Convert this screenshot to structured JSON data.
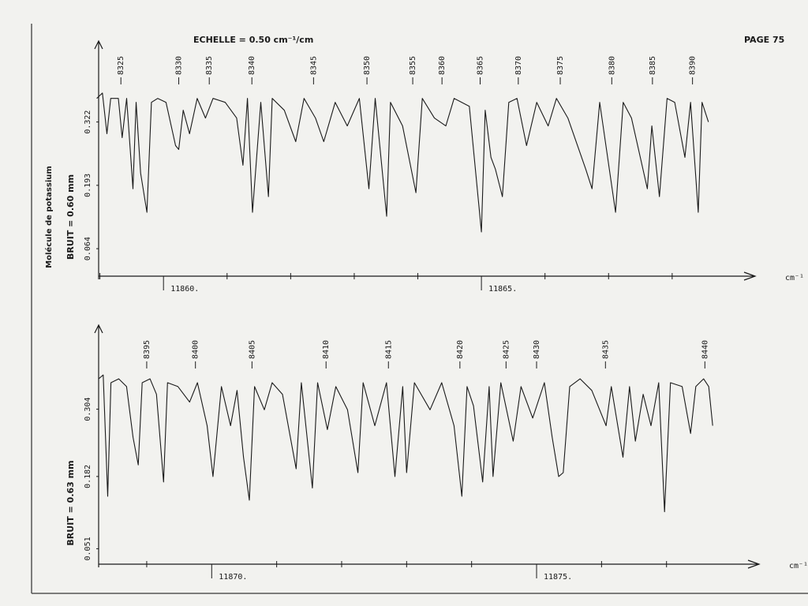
{
  "header": {
    "scale": "ECHELLE = 0.50 cm⁻¹/cm",
    "page": "PAGE 75"
  },
  "chart_data": [
    {
      "type": "line",
      "ylabel": "BRUIT = 0.60 mm",
      "molecule": "Molécule de potassium",
      "xlabel": "cm⁻¹",
      "xlim": [
        11858.98,
        11869.28
      ],
      "ylim": [
        0.008,
        0.474
      ],
      "xticks": [
        {
          "value": 11860,
          "label": "11860."
        },
        {
          "value": 11865,
          "label": "11865."
        }
      ],
      "minor_xticks": [
        11859,
        11861,
        11862,
        11863,
        11864,
        11866,
        11867,
        11868
      ],
      "yticks": [
        0.064,
        0.193,
        0.322
      ],
      "line_labels": [
        {
          "x": 11859.33,
          "label": "8325"
        },
        {
          "x": 11860.24,
          "label": "8330"
        },
        {
          "x": 11860.72,
          "label": "8335"
        },
        {
          "x": 11861.39,
          "label": "8340"
        },
        {
          "x": 11862.36,
          "label": "8345"
        },
        {
          "x": 11863.2,
          "label": "8350"
        },
        {
          "x": 11863.92,
          "label": "8355"
        },
        {
          "x": 11864.38,
          "label": "8360"
        },
        {
          "x": 11864.98,
          "label": "8365"
        },
        {
          "x": 11865.58,
          "label": "8370"
        },
        {
          "x": 11866.24,
          "label": "8375"
        },
        {
          "x": 11867.05,
          "label": "8380"
        },
        {
          "x": 11867.69,
          "label": "8385"
        },
        {
          "x": 11868.32,
          "label": "8390"
        }
      ],
      "series": [
        {
          "color": "#1a1a1a",
          "x": [
            11858.95,
            11859.04,
            11859.11,
            11859.17,
            11859.29,
            11859.35,
            11859.42,
            11859.52,
            11859.57,
            11859.64,
            11859.74,
            11859.81,
            11859.91,
            11860.04,
            11860.19,
            11860.24,
            11860.31,
            11860.41,
            11860.53,
            11860.66,
            11860.78,
            11860.97,
            11861.15,
            11861.25,
            11861.32,
            11861.4,
            11861.53,
            11861.65,
            11861.71,
            11861.9,
            11862.08,
            11862.21,
            11862.39,
            11862.52,
            11862.7,
            11862.89,
            11863.08,
            11863.23,
            11863.33,
            11863.51,
            11863.57,
            11863.76,
            11863.97,
            11864.07,
            11864.26,
            11864.44,
            11864.57,
            11864.81,
            11865.0,
            11865.06,
            11865.15,
            11865.22,
            11865.33,
            11865.43,
            11865.56,
            11865.71,
            11865.87,
            11866.05,
            11866.18,
            11866.36,
            11866.64,
            11866.74,
            11866.86,
            11867.11,
            11867.23,
            11867.36,
            11867.61,
            11867.68,
            11867.8,
            11867.92,
            11868.04,
            11868.2,
            11868.29,
            11868.41,
            11868.47,
            11868.57
          ],
          "values": [
            0.37,
            0.381,
            0.298,
            0.37,
            0.37,
            0.29,
            0.37,
            0.186,
            0.362,
            0.218,
            0.138,
            0.362,
            0.37,
            0.362,
            0.274,
            0.266,
            0.346,
            0.298,
            0.37,
            0.33,
            0.37,
            0.362,
            0.33,
            0.234,
            0.37,
            0.138,
            0.362,
            0.17,
            0.37,
            0.346,
            0.282,
            0.37,
            0.33,
            0.282,
            0.362,
            0.314,
            0.37,
            0.186,
            0.37,
            0.13,
            0.362,
            0.314,
            0.178,
            0.37,
            0.33,
            0.314,
            0.37,
            0.354,
            0.098,
            0.346,
            0.25,
            0.226,
            0.17,
            0.362,
            0.37,
            0.274,
            0.362,
            0.314,
            0.37,
            0.33,
            0.226,
            0.186,
            0.362,
            0.138,
            0.362,
            0.33,
            0.186,
            0.314,
            0.17,
            0.37,
            0.362,
            0.25,
            0.362,
            0.138,
            0.362,
            0.322
          ]
        }
      ]
    },
    {
      "type": "line",
      "ylabel": "BRUIT = 0.63 mm",
      "xlabel": "cm⁻¹",
      "xlim": [
        11868.26,
        11878.4
      ],
      "ylim": [
        0.023,
        0.445
      ],
      "xticks": [
        {
          "value": 11870,
          "label": "11870."
        },
        {
          "value": 11875,
          "label": "11875."
        }
      ],
      "minor_xticks": [
        11869,
        11871,
        11872,
        11873,
        11874,
        11876,
        11877
      ],
      "yticks": [
        0.051,
        0.182,
        0.304
      ],
      "line_labels": [
        {
          "x": 11869.0,
          "label": "8395"
        },
        {
          "x": 11869.75,
          "label": "8400"
        },
        {
          "x": 11870.62,
          "label": "8405"
        },
        {
          "x": 11871.76,
          "label": "8410"
        },
        {
          "x": 11872.72,
          "label": "8415"
        },
        {
          "x": 11873.82,
          "label": "8420"
        },
        {
          "x": 11874.53,
          "label": "8425"
        },
        {
          "x": 11875.0,
          "label": "8430"
        },
        {
          "x": 11876.06,
          "label": "8435"
        },
        {
          "x": 11877.59,
          "label": "8440"
        }
      ],
      "series": [
        {
          "color": "#1a1a1a",
          "x": [
            11868.26,
            11868.33,
            11868.4,
            11868.45,
            11868.57,
            11868.69,
            11868.79,
            11868.87,
            11868.93,
            11869.05,
            11869.15,
            11869.26,
            11869.32,
            11869.48,
            11869.66,
            11869.78,
            11869.93,
            11870.02,
            11870.15,
            11870.29,
            11870.39,
            11870.49,
            11870.58,
            11870.66,
            11870.81,
            11870.93,
            11871.09,
            11871.3,
            11871.38,
            11871.55,
            11871.63,
            11871.78,
            11871.91,
            11872.09,
            11872.25,
            11872.33,
            11872.51,
            11872.69,
            11872.82,
            11872.94,
            11873.0,
            11873.12,
            11873.36,
            11873.54,
            11873.73,
            11873.85,
            11873.93,
            11874.03,
            11874.17,
            11874.27,
            11874.33,
            11874.45,
            11874.64,
            11874.76,
            11874.94,
            11875.12,
            11875.24,
            11875.34,
            11875.41,
            11875.51,
            11875.67,
            11875.85,
            11876.07,
            11876.15,
            11876.33,
            11876.43,
            11876.52,
            11876.64,
            11876.76,
            11876.88,
            11876.97,
            11877.06,
            11877.24,
            11877.37,
            11877.45,
            11877.57,
            11877.65,
            11877.71
          ],
          "values": [
            0.359,
            0.366,
            0.146,
            0.352,
            0.359,
            0.345,
            0.253,
            0.203,
            0.352,
            0.359,
            0.331,
            0.172,
            0.352,
            0.345,
            0.317,
            0.352,
            0.274,
            0.182,
            0.345,
            0.274,
            0.338,
            0.217,
            0.139,
            0.345,
            0.303,
            0.352,
            0.331,
            0.196,
            0.352,
            0.161,
            0.352,
            0.267,
            0.345,
            0.303,
            0.189,
            0.352,
            0.274,
            0.352,
            0.182,
            0.345,
            0.189,
            0.352,
            0.303,
            0.352,
            0.274,
            0.146,
            0.345,
            0.31,
            0.172,
            0.345,
            0.182,
            0.352,
            0.246,
            0.345,
            0.288,
            0.352,
            0.253,
            0.182,
            0.189,
            0.345,
            0.359,
            0.338,
            0.274,
            0.345,
            0.217,
            0.345,
            0.246,
            0.331,
            0.274,
            0.352,
            0.118,
            0.352,
            0.345,
            0.26,
            0.345,
            0.359,
            0.345,
            0.274
          ]
        }
      ]
    }
  ]
}
